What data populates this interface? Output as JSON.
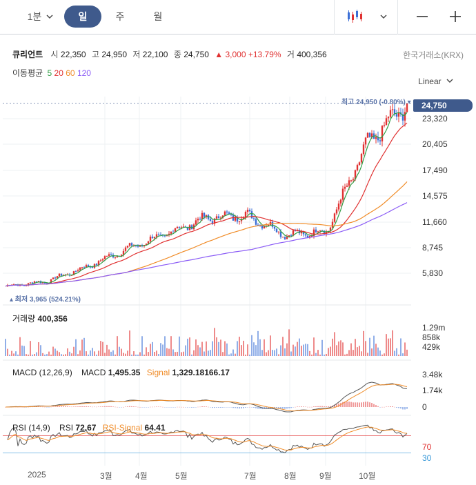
{
  "toolbar": {
    "interval_1m": "1분",
    "interval_day": "일",
    "interval_week": "주",
    "interval_month": "월",
    "chart_type_icon": "candlestick-icon",
    "minimize_icon": "minus-icon",
    "add_icon": "plus-icon"
  },
  "stock": {
    "name": "큐리언트",
    "open_label": "시",
    "open": "22,350",
    "high_label": "고",
    "high": "24,950",
    "low_label": "저",
    "low": "22,100",
    "close_label": "종",
    "close": "24,750",
    "change": "▲ 3,000",
    "change_pct": "+13.79%",
    "volume_label": "거",
    "volume": "400,356",
    "exchange": "한국거래소(KRX)"
  },
  "moving_avg": {
    "label": "이동평균",
    "periods": [
      "5",
      "20",
      "60",
      "120"
    ],
    "colors": [
      "#2f9e44",
      "#e03131",
      "#f08c28",
      "#8b5cf6"
    ]
  },
  "scale": "Linear",
  "price_axis": [
    "23,320",
    "20,405",
    "17,490",
    "14,575",
    "11,660",
    "8,745",
    "5,830"
  ],
  "current_price": "24,750",
  "max_note": "최고 24,950 (-0.80%) ▾",
  "min_note": "▴ 최저 3,965 (524.21%)",
  "volume_panel": {
    "label": "거래량",
    "value": "400,356",
    "axis": [
      "1.29m",
      "858k",
      "429k"
    ]
  },
  "macd_panel": {
    "label": "MACD (12,26,9)",
    "macd_label": "MACD",
    "macd": "1,495.35",
    "signal_label": "Signal",
    "signal": "1,329.18166.17",
    "axis": [
      "3.48k",
      "1.74k",
      "0"
    ]
  },
  "rsi_panel": {
    "label": "RSI (14,9)",
    "rsi_label": "RSI",
    "rsi": "72.67",
    "signal_label": "RSI-Signal",
    "signal": "64.41",
    "axis": [
      "70",
      "30"
    ]
  },
  "x_axis": [
    "2025",
    "3월",
    "4월",
    "5월",
    "7월",
    "8월",
    "9월",
    "10월"
  ],
  "colors": {
    "up": "#e03131",
    "down": "#3b6fd6",
    "accent": "#3f5a8c",
    "grid": "#eef0f3"
  },
  "chart_data": {
    "type": "line",
    "title": "",
    "x": [
      "2025-01",
      "2025-02",
      "2025-03",
      "2025-04",
      "2025-05",
      "2025-06",
      "2025-07",
      "2025-08",
      "2025-09",
      "2025-10",
      "2025-11"
    ],
    "series": [
      {
        "name": "종가",
        "values": [
          4400,
          4900,
          6500,
          8500,
          10200,
          12000,
          12300,
          10100,
          10500,
          20200,
          24750
        ]
      }
    ],
    "ylim": [
      4000,
      25500
    ]
  }
}
